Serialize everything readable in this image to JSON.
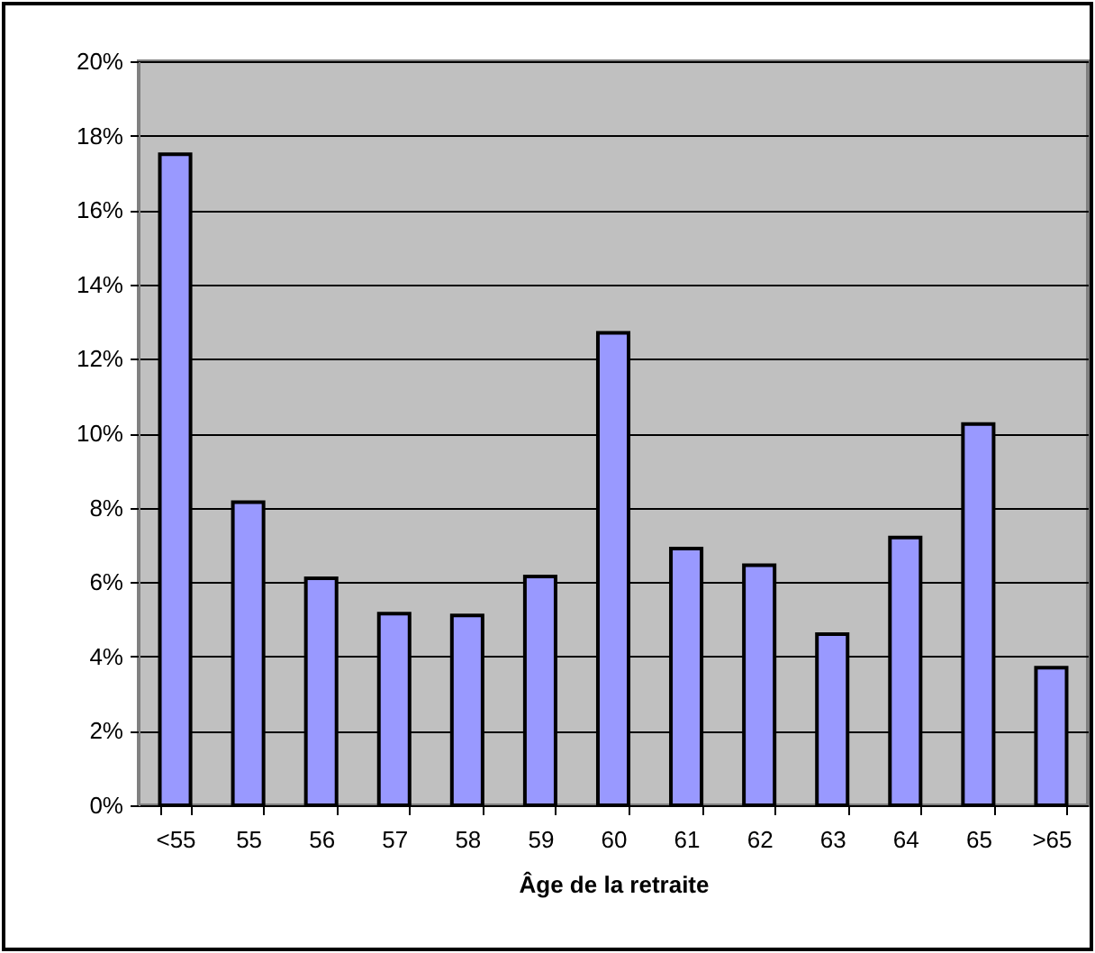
{
  "chart_data": {
    "type": "bar",
    "xlabel": "Âge de la retraite",
    "categories": [
      "<55",
      "55",
      "56",
      "57",
      "58",
      "59",
      "60",
      "61",
      "62",
      "63",
      "64",
      "65",
      ">65"
    ],
    "values": [
      17.5,
      8.15,
      6.1,
      5.15,
      5.1,
      6.15,
      12.7,
      6.9,
      6.45,
      4.6,
      7.2,
      10.25,
      3.7
    ],
    "color": "#9999ff",
    "ylim": [
      0,
      20
    ],
    "yticks": [
      {
        "value": 0,
        "label": "0%"
      },
      {
        "value": 2,
        "label": "2%"
      },
      {
        "value": 4,
        "label": "4%"
      },
      {
        "value": 6,
        "label": "6%"
      },
      {
        "value": 8,
        "label": "8%"
      },
      {
        "value": 10,
        "label": "10%"
      },
      {
        "value": 12,
        "label": "12%"
      },
      {
        "value": 14,
        "label": "14%"
      },
      {
        "value": 16,
        "label": "16%"
      },
      {
        "value": 18,
        "label": "18%"
      },
      {
        "value": 20,
        "label": "20%"
      }
    ],
    "grid": "y"
  }
}
